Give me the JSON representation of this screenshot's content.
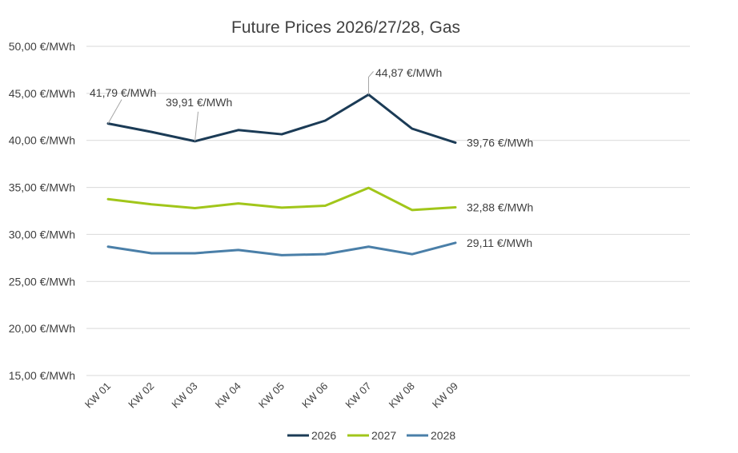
{
  "chart_data": {
    "type": "line",
    "title": "Future Prices 2026/27/28, Gas",
    "xlabel": "",
    "ylabel": "",
    "categories": [
      "KW 01",
      "KW 02",
      "KW 03",
      "KW 04",
      "KW 05",
      "KW 06",
      "KW 07",
      "KW 08",
      "KW 09"
    ],
    "ylim": [
      15,
      50
    ],
    "yticks": [
      "15,00 €/MWh",
      "20,00 €/MWh",
      "25,00 €/MWh",
      "30,00 €/MWh",
      "35,00 €/MWh",
      "40,00 €/MWh",
      "45,00 €/MWh",
      "50,00 €/MWh"
    ],
    "ytick_values": [
      15,
      20,
      25,
      30,
      35,
      40,
      45,
      50
    ],
    "grid": true,
    "legend_position": "bottom-center",
    "series": [
      {
        "name": "2026",
        "color": "#1b3b56",
        "values": [
          41.79,
          40.9,
          39.91,
          41.1,
          40.65,
          42.1,
          44.87,
          41.25,
          39.76
        ]
      },
      {
        "name": "2027",
        "color": "#a1c61a",
        "values": [
          33.75,
          33.2,
          32.8,
          33.3,
          32.85,
          33.05,
          34.95,
          32.6,
          32.88
        ]
      },
      {
        "name": "2028",
        "color": "#4a7fa8",
        "values": [
          28.7,
          28.0,
          28.0,
          28.35,
          27.8,
          27.9,
          28.7,
          27.9,
          29.11
        ]
      }
    ],
    "data_labels": [
      {
        "series": 0,
        "index": 0,
        "text": "41,79 €/MWh",
        "leader": true
      },
      {
        "series": 0,
        "index": 2,
        "text": "39,91 €/MWh",
        "leader": true
      },
      {
        "series": 0,
        "index": 6,
        "text": "44,87 €/MWh",
        "leader": true
      },
      {
        "series": 0,
        "index": 8,
        "text": "39,76 €/MWh",
        "leader": false
      },
      {
        "series": 1,
        "index": 8,
        "text": "32,88 €/MWh",
        "leader": false
      },
      {
        "series": 2,
        "index": 8,
        "text": "29,11 €/MWh",
        "leader": false
      }
    ]
  }
}
